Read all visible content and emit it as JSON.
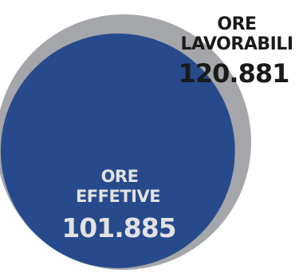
{
  "chart_data": {
    "type": "bubble",
    "series": [
      {
        "name_lines": [
          "ORE",
          "LAVORABILI"
        ],
        "value": 120881,
        "value_label": "120.881",
        "color": "#a4a6a9",
        "text_color": "#1a1a1a"
      },
      {
        "name_lines": [
          "ORE",
          "EFFETIVE"
        ],
        "value": 101885,
        "value_label": "101.885",
        "color": "#264a8c",
        "text_color": "#e2e2e2"
      }
    ]
  }
}
